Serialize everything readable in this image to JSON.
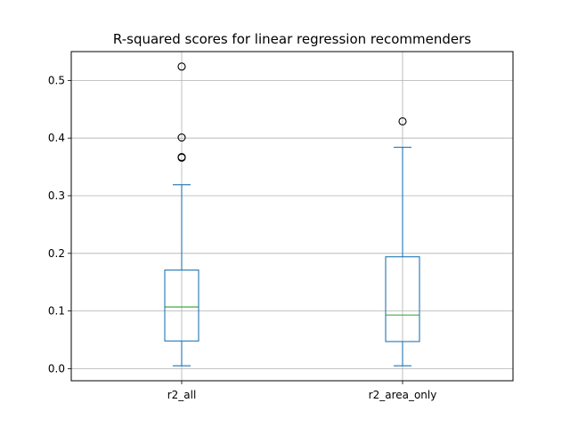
{
  "chart_data": {
    "type": "box",
    "title": "R-squared scores for linear regression recommenders",
    "xlabel": "",
    "ylabel": "",
    "categories": [
      "r2_all",
      "r2_area_only"
    ],
    "ylim": [
      -0.021,
      0.55
    ],
    "yticks": [
      0.0,
      0.1,
      0.2,
      0.3,
      0.4,
      0.5
    ],
    "ytick_labels": [
      "0.0",
      "0.1",
      "0.2",
      "0.3",
      "0.4",
      "0.5"
    ],
    "grid": true,
    "colors": {
      "box": "#1f77b4",
      "median": "#2ca02c",
      "grid": "#b0b0b0",
      "axis": "#000000"
    },
    "series": [
      {
        "category": "r2_all",
        "whisker_low": 0.005,
        "q1": 0.048,
        "median": 0.107,
        "q3": 0.171,
        "whisker_high": 0.319,
        "outliers": [
          0.366,
          0.367,
          0.401,
          0.524
        ]
      },
      {
        "category": "r2_area_only",
        "whisker_low": 0.005,
        "q1": 0.047,
        "median": 0.093,
        "q3": 0.194,
        "whisker_high": 0.384,
        "outliers": [
          0.429
        ]
      }
    ]
  }
}
